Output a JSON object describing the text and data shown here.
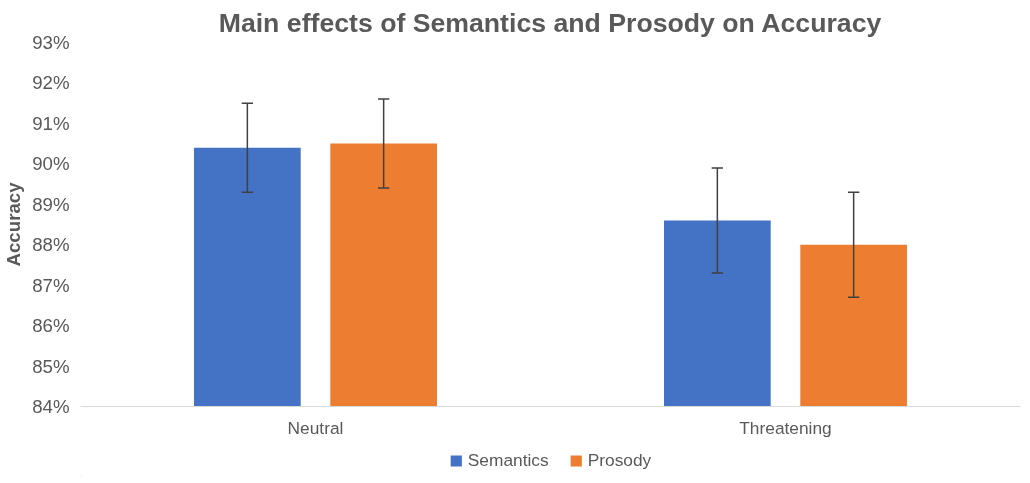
{
  "chart_data": {
    "type": "bar",
    "title": "Main effects of Semantics and Prosody on Accuracy",
    "ylabel": "Accuracy",
    "categories": [
      "Neutral",
      "Threatening"
    ],
    "series": [
      {
        "name": "Semantics",
        "color": "#4472c4",
        "values": [
          90.4,
          88.6
        ],
        "errors": [
          1.1,
          1.3
        ]
      },
      {
        "name": "Prosody",
        "color": "#ed7d31",
        "values": [
          90.5,
          88.0
        ],
        "errors": [
          1.1,
          1.3
        ]
      }
    ],
    "ylim": [
      84,
      93
    ],
    "yticks": [
      {
        "value": 84,
        "label": "84%"
      },
      {
        "value": 85,
        "label": "85%"
      },
      {
        "value": 86,
        "label": "86%"
      },
      {
        "value": 87,
        "label": "87%"
      },
      {
        "value": 88,
        "label": "88%"
      },
      {
        "value": 89,
        "label": "89%"
      },
      {
        "value": 90,
        "label": "90%"
      },
      {
        "value": 91,
        "label": "91%"
      },
      {
        "value": 92,
        "label": "92%"
      },
      {
        "value": 93,
        "label": "93%"
      }
    ],
    "grid": false,
    "legend": "bottom"
  }
}
